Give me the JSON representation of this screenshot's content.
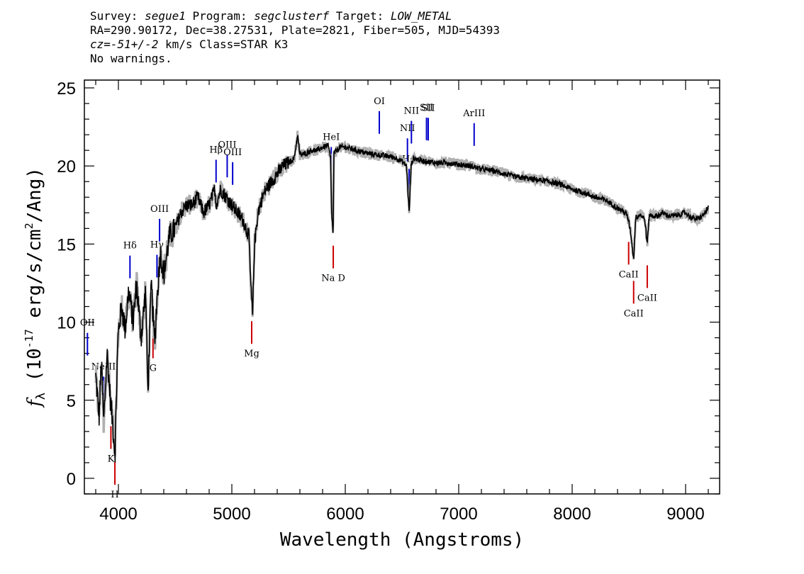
{
  "header": {
    "survey_label": "Survey: ",
    "survey": "segue1",
    "program_label": " Program: ",
    "program": "segclusterf",
    "target_label": " Target: ",
    "target": "LOW_METAL",
    "line2": "RA=290.90172, Dec=38.27531, Plate=2821, Fiber=505, MJD=54393",
    "cz_label": "cz",
    "cz_value": "=-51+/-2",
    "line3_rest": " km/s Class=STAR K3",
    "line4": "No warnings."
  },
  "chart_data": {
    "type": "line",
    "xlabel": "Wavelength (Angstroms)",
    "ylabel": "f_λ (10^-17 erg/s/cm^2/Ang)",
    "xlim": [
      3700,
      9300
    ],
    "ylim": [
      -1,
      25.5
    ],
    "x_ticks": [
      "4000",
      "5000",
      "6000",
      "7000",
      "8000",
      "9000"
    ],
    "y_ticks": [
      "0",
      "5",
      "10",
      "15",
      "20",
      "25"
    ],
    "colors": {
      "spectrum": "#000000",
      "error": "#b0b0b0",
      "emission": "#0000cc",
      "absorption": "#cc0000"
    },
    "series": [
      {
        "x": [
          3800,
          3830,
          3850,
          3870,
          3900,
          3930,
          3950,
          3970,
          3990,
          4000,
          4030,
          4060,
          4090,
          4101,
          4130,
          4160,
          4200,
          4240,
          4260,
          4290,
          4320,
          4340,
          4370,
          4400,
          4450,
          4500,
          4550,
          4600,
          4650,
          4700,
          4750,
          4800,
          4850,
          4862,
          4900,
          4950,
          5000,
          5050,
          5100,
          5150,
          5170,
          5183,
          5200,
          5230,
          5270,
          5300,
          5350,
          5400,
          5450,
          5500,
          5550,
          5580,
          5600,
          5650,
          5700,
          5750,
          5800,
          5850,
          5870,
          5880,
          5893,
          5900,
          5950,
          6000,
          6100,
          6200,
          6300,
          6400,
          6450,
          6500,
          6540,
          6563,
          6580,
          6600,
          6700,
          6800,
          6900,
          7000,
          7100,
          7200,
          7300,
          7400,
          7500,
          7600,
          7700,
          7800,
          7900,
          8000,
          8100,
          8200,
          8300,
          8400,
          8450,
          8480,
          8498,
          8520,
          8542,
          8560,
          8600,
          8640,
          8662,
          8680,
          8700,
          8750,
          8800,
          8850,
          8900,
          8950,
          9000,
          9050,
          9100,
          9150,
          9200
        ],
        "y": [
          6.5,
          4.0,
          7.5,
          3.5,
          8.0,
          5.0,
          3.5,
          1.5,
          7.5,
          9.5,
          11.0,
          9.5,
          12.0,
          11.5,
          10.0,
          12.5,
          9.0,
          12.0,
          5.5,
          12.5,
          8.5,
          11.5,
          14.5,
          13.0,
          15.5,
          16.0,
          17.0,
          17.5,
          17.5,
          18.0,
          17.0,
          17.5,
          18.5,
          17.5,
          18.5,
          18.0,
          17.5,
          17.0,
          16.5,
          15.5,
          12.0,
          10.5,
          15.0,
          17.0,
          18.0,
          18.5,
          19.0,
          19.5,
          20.0,
          20.2,
          20.5,
          22.0,
          20.7,
          20.8,
          21.0,
          21.0,
          21.2,
          21.3,
          20.5,
          17.0,
          15.5,
          20.8,
          21.2,
          21.2,
          21.0,
          20.8,
          20.7,
          20.6,
          20.5,
          20.3,
          20.0,
          17.0,
          20.0,
          20.5,
          20.3,
          20.2,
          20.2,
          20.1,
          20.0,
          19.8,
          19.7,
          19.5,
          19.3,
          19.2,
          19.1,
          19.0,
          18.8,
          18.5,
          18.3,
          18.0,
          17.8,
          17.3,
          17.1,
          16.9,
          16.5,
          15.5,
          14.0,
          16.7,
          16.9,
          16.6,
          15.0,
          16.9,
          16.8,
          16.8,
          17.0,
          16.8,
          16.8,
          16.9,
          17.0,
          16.7,
          16.6,
          16.8,
          17.3
        ]
      }
    ],
    "lines": [
      {
        "label": "OII",
        "x": 3727,
        "type": "emission"
      },
      {
        "label": "NeIII",
        "x": 3869,
        "type": "emission"
      },
      {
        "label": "Hδ",
        "x": 4102,
        "type": "emission"
      },
      {
        "label": "Hγ",
        "x": 4340,
        "type": "emission"
      },
      {
        "label": "OIII",
        "x": 4363,
        "type": "emission"
      },
      {
        "label": "Hβ",
        "x": 4861,
        "type": "emission"
      },
      {
        "label": "OIII",
        "x": 4959,
        "type": "emission"
      },
      {
        "label": "OIII",
        "x": 5007,
        "type": "emission"
      },
      {
        "label": "HeI",
        "x": 5876,
        "type": "emission"
      },
      {
        "label": "OI",
        "x": 6300,
        "type": "emission"
      },
      {
        "label": "NII",
        "x": 6548,
        "type": "emission"
      },
      {
        "label": "Hα",
        "x": 6563,
        "type": "emission"
      },
      {
        "label": "NII",
        "x": 6583,
        "type": "emission"
      },
      {
        "label": "SII",
        "x": 6716,
        "type": "emission"
      },
      {
        "label": "SII",
        "x": 6731,
        "type": "emission"
      },
      {
        "label": "ArIII",
        "x": 7136,
        "type": "emission"
      },
      {
        "label": "K",
        "x": 3934,
        "type": "absorption"
      },
      {
        "label": "H",
        "x": 3969,
        "type": "absorption"
      },
      {
        "label": "G",
        "x": 4305,
        "type": "absorption"
      },
      {
        "label": "Mg",
        "x": 5175,
        "type": "absorption"
      },
      {
        "label": "Na D",
        "x": 5894,
        "type": "absorption"
      },
      {
        "label": "CaII",
        "x": 8498,
        "type": "absorption"
      },
      {
        "label": "CaII",
        "x": 8542,
        "type": "absorption"
      },
      {
        "label": "CaII",
        "x": 8662,
        "type": "absorption"
      }
    ]
  }
}
